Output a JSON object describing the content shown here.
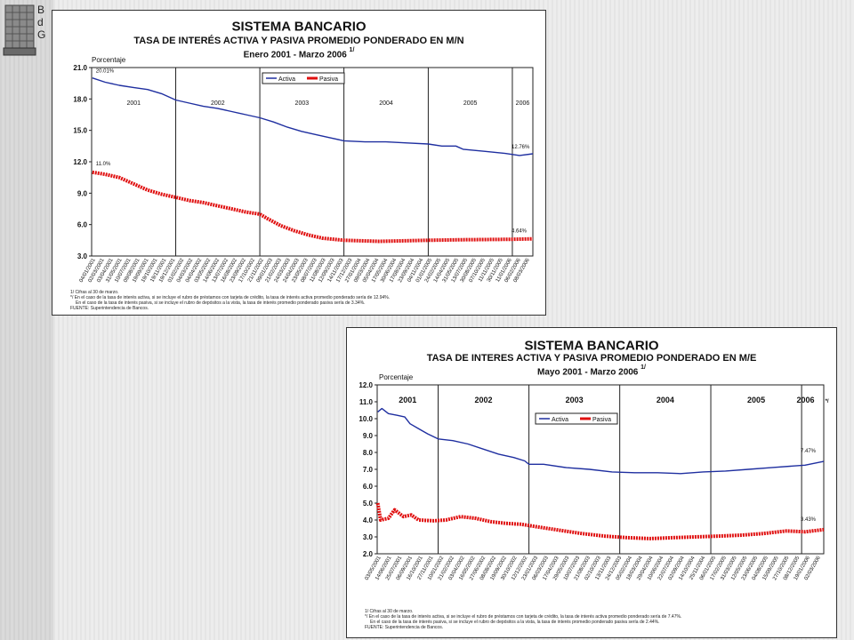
{
  "logo": {
    "text": "B\nd\nG"
  },
  "chart_data": [
    {
      "type": "line",
      "title": "SISTEMA BANCARIO",
      "subtitle": "TASA DE INTERÉS ACTIVA Y PASIVA PROMEDIO PONDERADO EN M/N",
      "period": "Enero 2001 - Marzo 2006",
      "footnote_marker": "1/",
      "ylabel": "Porcentaje",
      "ylim": [
        3.0,
        21.0
      ],
      "yticks": [
        "3.0",
        "6.0",
        "9.0",
        "12.0",
        "15.0",
        "18.0",
        "21.0"
      ],
      "xlim": [
        "2001-01-01",
        "2006-03-31"
      ],
      "years": [
        "2001",
        "2002",
        "2003",
        "2004",
        "2005",
        "2006"
      ],
      "year_dividers": [
        "2002-01-01",
        "2003-01-01",
        "2004-01-01",
        "2005-01-01",
        "2006-01-01"
      ],
      "legend": {
        "position": "top-center",
        "entries": [
          "Activa",
          "Pasiva"
        ]
      },
      "colors": {
        "Activa": "#1f2fa0",
        "Pasiva": "#e01010"
      },
      "xtick_labels": [
        "04/01/2001",
        "02/03/2001",
        "03/04/2001",
        "31/05/2001",
        "10/07/2001",
        "09/08/2001",
        "19/09/2001",
        "19/10/2001",
        "19/11/2001",
        "19/12/2001",
        "01/02/2002",
        "04/03/2002",
        "04/04/2002",
        "03/05/2002",
        "14/06/2002",
        "13/07/2002",
        "16/08/2002",
        "23/09/2002",
        "17/10/2002",
        "21/11/2002",
        "09/01/2003",
        "21/02/2003",
        "24/03/2003",
        "24/04/2003",
        "23/05/2003",
        "08/07/2003",
        "11/08/2003",
        "12/09/2003",
        "14/11/2003",
        "17/12/2003",
        "27/01/2004",
        "09/03/2004",
        "05/04/2004",
        "17/05/2004",
        "30/06/2004",
        "17/08/2004",
        "23/09/2004",
        "04/11/2004",
        "01/01/2005",
        "24/02/2005",
        "14/04/2005",
        "31/05/2005",
        "13/07/2005",
        "30/08/2005",
        "07/10/2005",
        "11/11/2005",
        "30/11/2005",
        "11/01/2006",
        "06/02/2006",
        "08/03/2006"
      ],
      "annotations": [
        "20.01%",
        "11.0%",
        "12.76%",
        "4.64%"
      ],
      "series": [
        {
          "name": "Activa",
          "points": [
            [
              "2001-01-04",
              20.01
            ],
            [
              "2001-03-01",
              19.6
            ],
            [
              "2001-05-01",
              19.3
            ],
            [
              "2001-07-01",
              19.1
            ],
            [
              "2001-09-01",
              18.9
            ],
            [
              "2001-11-01",
              18.5
            ],
            [
              "2002-01-01",
              17.9
            ],
            [
              "2002-03-01",
              17.6
            ],
            [
              "2002-05-01",
              17.3
            ],
            [
              "2002-07-01",
              17.1
            ],
            [
              "2002-09-01",
              16.8
            ],
            [
              "2002-11-01",
              16.5
            ],
            [
              "2003-01-01",
              16.2
            ],
            [
              "2003-03-01",
              15.8
            ],
            [
              "2003-05-01",
              15.3
            ],
            [
              "2003-07-01",
              14.9
            ],
            [
              "2003-09-01",
              14.6
            ],
            [
              "2003-11-01",
              14.3
            ],
            [
              "2004-01-01",
              14.0
            ],
            [
              "2004-04-01",
              13.9
            ],
            [
              "2004-07-01",
              13.9
            ],
            [
              "2004-10-01",
              13.8
            ],
            [
              "2005-01-01",
              13.7
            ],
            [
              "2005-03-01",
              13.5
            ],
            [
              "2005-05-01",
              13.5
            ],
            [
              "2005-06-01",
              13.2
            ],
            [
              "2005-09-01",
              13.0
            ],
            [
              "2005-12-01",
              12.8
            ],
            [
              "2006-02-01",
              12.6
            ],
            [
              "2006-03-31",
              12.76
            ]
          ]
        },
        {
          "name": "Pasiva",
          "points": [
            [
              "2001-01-04",
              11.0
            ],
            [
              "2001-03-01",
              10.8
            ],
            [
              "2001-05-01",
              10.5
            ],
            [
              "2001-07-01",
              9.9
            ],
            [
              "2001-09-01",
              9.3
            ],
            [
              "2001-11-01",
              8.9
            ],
            [
              "2002-01-01",
              8.6
            ],
            [
              "2002-03-01",
              8.3
            ],
            [
              "2002-05-01",
              8.1
            ],
            [
              "2002-07-01",
              7.8
            ],
            [
              "2002-09-01",
              7.5
            ],
            [
              "2002-11-01",
              7.2
            ],
            [
              "2003-01-01",
              7.0
            ],
            [
              "2003-02-01",
              6.6
            ],
            [
              "2003-04-01",
              5.9
            ],
            [
              "2003-06-01",
              5.4
            ],
            [
              "2003-08-01",
              5.0
            ],
            [
              "2003-10-01",
              4.7
            ],
            [
              "2004-01-01",
              4.5
            ],
            [
              "2004-06-01",
              4.4
            ],
            [
              "2005-01-01",
              4.5
            ],
            [
              "2005-06-01",
              4.55
            ],
            [
              "2006-01-01",
              4.6
            ],
            [
              "2006-03-31",
              4.64
            ]
          ]
        }
      ],
      "notes": [
        "1/ Cifras al 30 de marzo.",
        "*/ En el caso de la tasa de interés activa, si se incluye el rubro de préstamos con tarjeta de crédito, la tasa de interés activa promedio ponderado sería de 12.94%.",
        "En el caso de la tasa de interés pasiva, si se incluye el rubro de depósitos a la vista, la tasa de interés promedio ponderado pasiva sería de 3.34%.",
        "FUENTE: Superintendencia de Bancos."
      ]
    },
    {
      "type": "line",
      "title": "SISTEMA BANCARIO",
      "subtitle": "TASA DE INTERES ACTIVA Y PASIVA PROMEDIO PONDERADO EN M/E",
      "period": "Mayo 2001 - Marzo 2006",
      "footnote_marker": "1/",
      "ylabel": "Porcentaje",
      "ylim": [
        2.0,
        12.0
      ],
      "yticks": [
        "2.0",
        "3.0",
        "4.0",
        "5.0",
        "6.0",
        "7.0",
        "8.0",
        "9.0",
        "10.0",
        "11.0",
        "12.0"
      ],
      "xlim": [
        "2001-05-01",
        "2006-03-31"
      ],
      "years": [
        "2001",
        "2002",
        "2003",
        "2004",
        "2005",
        "2006"
      ],
      "year_marker": "*/",
      "year_dividers": [
        "2002-01-01",
        "2003-01-01",
        "2004-01-01",
        "2005-01-01",
        "2006-01-01"
      ],
      "legend": {
        "position": "top-center",
        "entries": [
          "Activa",
          "Pasiva"
        ]
      },
      "colors": {
        "Activa": "#1f2fa0",
        "Pasiva": "#e01010"
      },
      "xtick_labels": [
        "03/05/2001",
        "14/06/2001",
        "25/07/2001",
        "06/09/2001",
        "16/10/2001",
        "27/11/2001",
        "10/01/2002",
        "21/02/2002",
        "03/04/2002",
        "16/05/2002",
        "27/06/2002",
        "08/08/2002",
        "19/09/2002",
        "30/10/2002",
        "12/12/2002",
        "23/01/2003",
        "06/03/2003",
        "17/04/2003",
        "29/05/2003",
        "10/07/2003",
        "21/08/2003",
        "02/10/2003",
        "13/11/2003",
        "24/12/2003",
        "05/02/2004",
        "18/03/2004",
        "29/04/2004",
        "10/06/2004",
        "22/07/2004",
        "02/09/2004",
        "14/10/2004",
        "25/11/2004",
        "06/01/2005",
        "17/02/2005",
        "31/03/2005",
        "12/05/2005",
        "23/06/2005",
        "04/08/2005",
        "15/09/2005",
        "27/10/2005",
        "08/12/2005",
        "19/01/2006",
        "02/03/2006"
      ],
      "annotations": [
        "7.47%",
        "3.43%"
      ],
      "series": [
        {
          "name": "Activa",
          "points": [
            [
              "2001-05-03",
              10.4
            ],
            [
              "2001-05-20",
              10.6
            ],
            [
              "2001-06-15",
              10.3
            ],
            [
              "2001-07-20",
              10.2
            ],
            [
              "2001-08-20",
              10.1
            ],
            [
              "2001-09-10",
              9.7
            ],
            [
              "2001-10-15",
              9.4
            ],
            [
              "2001-11-20",
              9.1
            ],
            [
              "2002-01-01",
              8.8
            ],
            [
              "2002-03-01",
              8.7
            ],
            [
              "2002-05-01",
              8.5
            ],
            [
              "2002-07-01",
              8.2
            ],
            [
              "2002-09-01",
              7.9
            ],
            [
              "2002-11-01",
              7.7
            ],
            [
              "2002-12-15",
              7.5
            ],
            [
              "2003-01-01",
              7.3
            ],
            [
              "2003-03-01",
              7.3
            ],
            [
              "2003-06-01",
              7.1
            ],
            [
              "2003-09-01",
              7.0
            ],
            [
              "2003-12-01",
              6.85
            ],
            [
              "2004-03-01",
              6.8
            ],
            [
              "2004-06-01",
              6.8
            ],
            [
              "2004-09-01",
              6.75
            ],
            [
              "2004-12-01",
              6.85
            ],
            [
              "2005-03-01",
              6.9
            ],
            [
              "2005-06-01",
              7.0
            ],
            [
              "2005-09-01",
              7.1
            ],
            [
              "2005-12-01",
              7.2
            ],
            [
              "2006-01-15",
              7.25
            ],
            [
              "2006-03-31",
              7.47
            ]
          ]
        },
        {
          "name": "Pasiva",
          "points": [
            [
              "2001-05-03",
              5.0
            ],
            [
              "2001-05-15",
              4.0
            ],
            [
              "2001-06-15",
              4.1
            ],
            [
              "2001-07-10",
              4.6
            ],
            [
              "2001-08-15",
              4.2
            ],
            [
              "2001-09-15",
              4.3
            ],
            [
              "2001-10-15",
              4.0
            ],
            [
              "2001-12-15",
              3.95
            ],
            [
              "2002-02-01",
              4.0
            ],
            [
              "2002-04-01",
              4.2
            ],
            [
              "2002-06-01",
              4.1
            ],
            [
              "2002-08-01",
              3.9
            ],
            [
              "2002-10-01",
              3.8
            ],
            [
              "2002-12-01",
              3.75
            ],
            [
              "2003-02-01",
              3.6
            ],
            [
              "2003-05-01",
              3.4
            ],
            [
              "2003-08-01",
              3.2
            ],
            [
              "2003-11-01",
              3.05
            ],
            [
              "2004-02-01",
              2.95
            ],
            [
              "2004-05-01",
              2.9
            ],
            [
              "2004-08-01",
              2.95
            ],
            [
              "2004-11-01",
              3.0
            ],
            [
              "2005-02-01",
              3.05
            ],
            [
              "2005-05-01",
              3.1
            ],
            [
              "2005-08-01",
              3.2
            ],
            [
              "2005-11-01",
              3.35
            ],
            [
              "2006-01-15",
              3.3
            ],
            [
              "2006-03-31",
              3.43
            ]
          ]
        }
      ],
      "notes": [
        "1/ Cifras al 30 de marzo.",
        "*/ En el caso de la tasa de interés activa, si se incluye el rubro de préstamos con tarjeta de crédito, la tasa de interés activa promedio ponderado sería de 7.47%.",
        "En el caso de la tasa de interés pasiva, si se incluye el rubro de depósitos a la vista, la tasa de interés promedio ponderado pasiva sería de 2.44%.",
        "FUENTE: Superintendencia de Bancos."
      ]
    }
  ]
}
